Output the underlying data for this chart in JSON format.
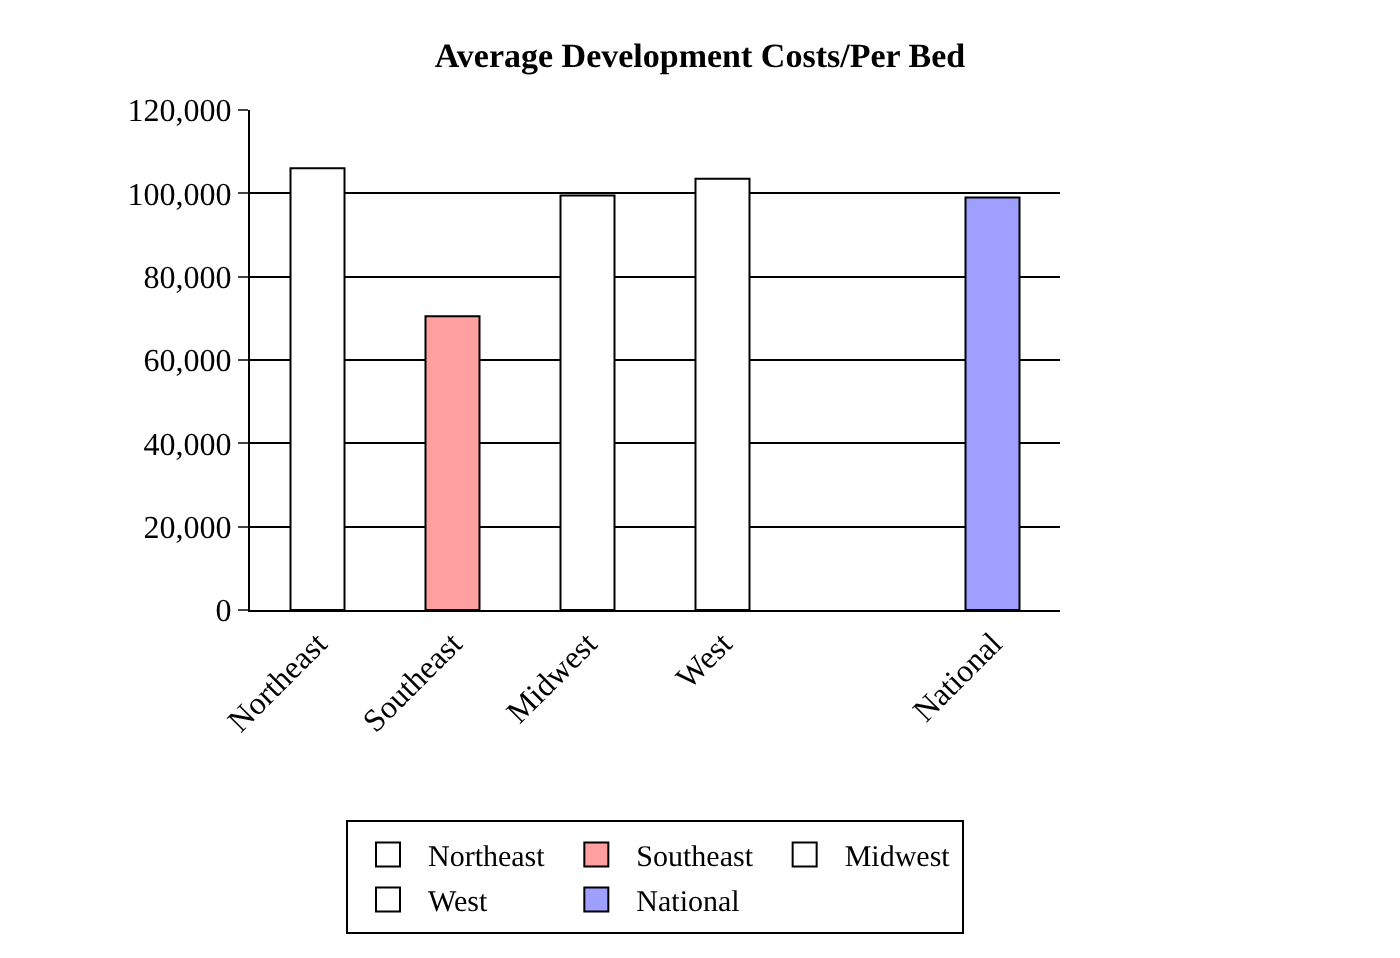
{
  "chart_data": {
    "type": "bar",
    "title": "Average Development Costs/Per Bed",
    "categories": [
      "Northeast",
      "Southeast",
      "Midwest",
      "West",
      null,
      "National"
    ],
    "series": [
      {
        "name": "Northeast",
        "color": "#ffffff",
        "values": [
          106000,
          null,
          null,
          null,
          null,
          null
        ]
      },
      {
        "name": "Southeast",
        "color": "#ff9f9f",
        "values": [
          null,
          70500,
          null,
          null,
          null,
          null
        ]
      },
      {
        "name": "Midwest",
        "color": "#ffffff",
        "values": [
          null,
          null,
          99500,
          null,
          null,
          null
        ]
      },
      {
        "name": "West",
        "color": "#ffffff",
        "values": [
          null,
          null,
          null,
          103500,
          null,
          null
        ]
      },
      {
        "name": "National",
        "color": "#9f9fff",
        "values": [
          null,
          null,
          null,
          null,
          null,
          99000
        ]
      }
    ],
    "ylim": [
      0,
      120000
    ],
    "yticks": [
      {
        "value": 0,
        "label": "0"
      },
      {
        "value": 20000,
        "label": "20,000"
      },
      {
        "value": 40000,
        "label": "40,000"
      },
      {
        "value": 60000,
        "label": "60,000"
      },
      {
        "value": 80000,
        "label": "80,000"
      },
      {
        "value": 100000,
        "label": "100,000"
      },
      {
        "value": 120000,
        "label": "120,000"
      }
    ],
    "grid": "y",
    "legend": "bottom"
  }
}
